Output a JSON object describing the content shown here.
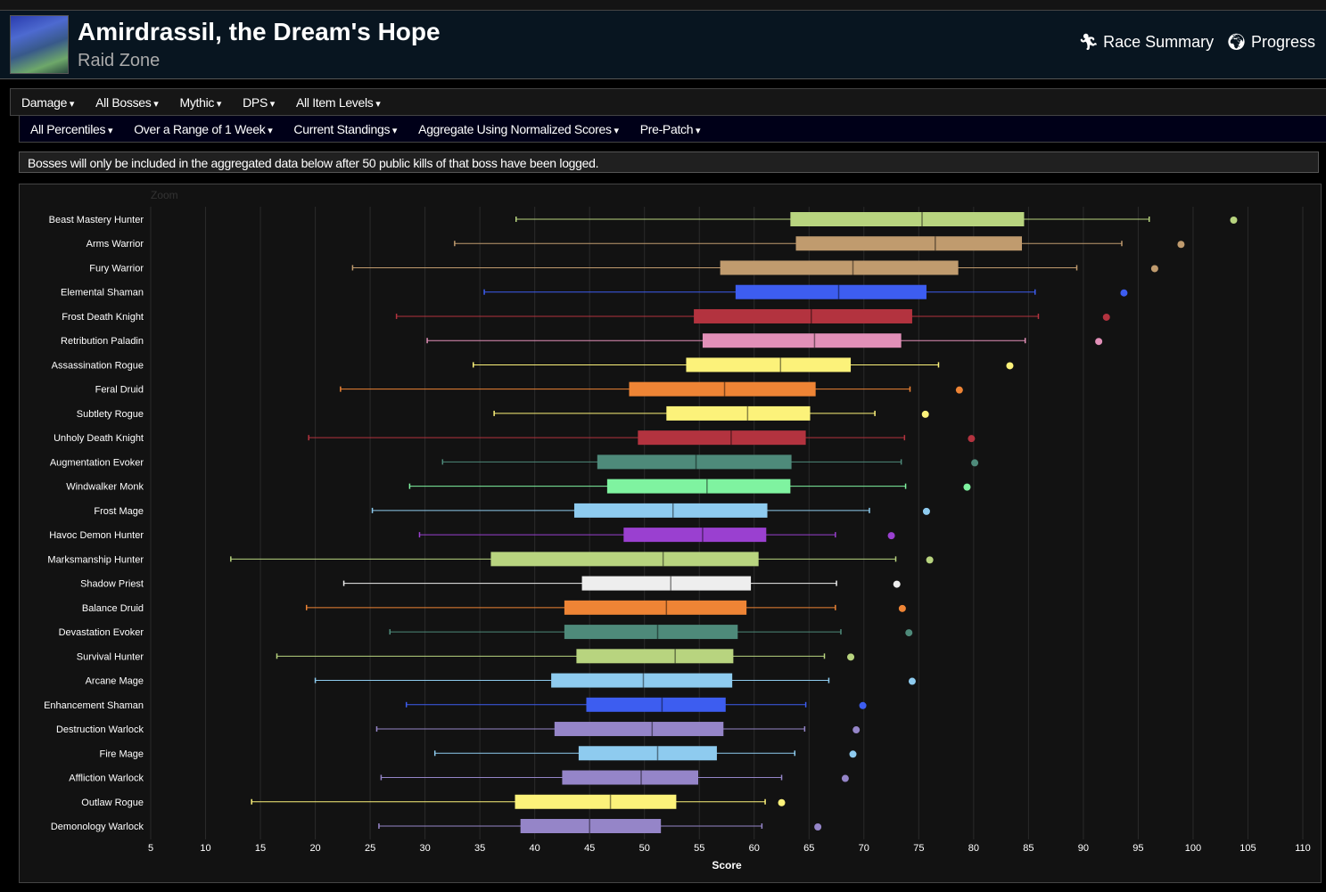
{
  "header": {
    "title": "Amirdrassil, the Dream's Hope",
    "subtitle": "Raid Zone",
    "race_summary": "Race Summary",
    "progress": "Progress"
  },
  "nav_primary": [
    "Damage",
    "All Bosses",
    "Mythic",
    "DPS",
    "All Item Levels"
  ],
  "nav_secondary": [
    "All Percentiles",
    "Over a Range of 1 Week",
    "Current Standings",
    "Aggregate Using Normalized Scores",
    "Pre-Patch"
  ],
  "notice": "Bosses will only be included in the aggregated data below after 50 public kills of that boss have been logged.",
  "chart_data": {
    "type": "boxplot",
    "orientation": "horizontal",
    "xlabel": "Score",
    "zoom_label": "Zoom",
    "xlim": [
      5,
      110
    ],
    "xticks": [
      5,
      10,
      15,
      20,
      25,
      30,
      35,
      40,
      45,
      50,
      55,
      60,
      65,
      70,
      75,
      80,
      85,
      90,
      95,
      100,
      105,
      110
    ],
    "grid": true,
    "series": [
      {
        "name": "Beast Mastery Hunter",
        "color": "#b8d47f",
        "low": 38.3,
        "q1": 63.3,
        "median": 75.3,
        "q3": 84.6,
        "high": 96.0,
        "outlier": 103.7
      },
      {
        "name": "Arms Warrior",
        "color": "#c09b6e",
        "low": 32.7,
        "q1": 63.8,
        "median": 76.5,
        "q3": 84.4,
        "high": 93.5,
        "outlier": 98.9
      },
      {
        "name": "Fury Warrior",
        "color": "#c09b6e",
        "low": 23.4,
        "q1": 56.9,
        "median": 69.0,
        "q3": 78.6,
        "high": 89.4,
        "outlier": 96.5
      },
      {
        "name": "Elemental Shaman",
        "color": "#3d5df0",
        "low": 35.4,
        "q1": 58.3,
        "median": 67.7,
        "q3": 75.7,
        "high": 85.6,
        "outlier": 93.7
      },
      {
        "name": "Frost Death Knight",
        "color": "#b3333f",
        "low": 27.4,
        "q1": 54.5,
        "median": 65.2,
        "q3": 74.4,
        "high": 85.9,
        "outlier": 92.1
      },
      {
        "name": "Retribution Paladin",
        "color": "#e290b8",
        "low": 30.2,
        "q1": 55.3,
        "median": 65.5,
        "q3": 73.4,
        "high": 84.7,
        "outlier": 91.4
      },
      {
        "name": "Assassination Rogue",
        "color": "#fcf27a",
        "low": 34.4,
        "q1": 53.8,
        "median": 62.4,
        "q3": 68.8,
        "high": 76.8,
        "outlier": 83.3
      },
      {
        "name": "Feral Druid",
        "color": "#ee8435",
        "low": 22.3,
        "q1": 48.6,
        "median": 57.3,
        "q3": 65.6,
        "high": 74.2,
        "outlier": 78.7
      },
      {
        "name": "Subtlety Rogue",
        "color": "#fcf27a",
        "low": 36.3,
        "q1": 52.0,
        "median": 59.4,
        "q3": 65.1,
        "high": 71.0,
        "outlier": 75.6
      },
      {
        "name": "Unholy Death Knight",
        "color": "#b3333f",
        "low": 19.4,
        "q1": 49.4,
        "median": 57.9,
        "q3": 64.7,
        "high": 73.7,
        "outlier": 79.8
      },
      {
        "name": "Augmentation Evoker",
        "color": "#4e8a7a",
        "low": 31.6,
        "q1": 45.7,
        "median": 54.7,
        "q3": 63.4,
        "high": 73.4,
        "outlier": 80.1
      },
      {
        "name": "Windwalker Monk",
        "color": "#7ff3a0",
        "low": 28.6,
        "q1": 46.6,
        "median": 55.7,
        "q3": 63.3,
        "high": 73.8,
        "outlier": 79.4
      },
      {
        "name": "Frost Mage",
        "color": "#8ecbef",
        "low": 25.2,
        "q1": 43.6,
        "median": 52.6,
        "q3": 61.2,
        "high": 70.5,
        "outlier": 75.7
      },
      {
        "name": "Havoc Demon Hunter",
        "color": "#9a40d0",
        "low": 29.5,
        "q1": 48.1,
        "median": 55.3,
        "q3": 61.1,
        "high": 67.4,
        "outlier": 72.5
      },
      {
        "name": "Marksmanship Hunter",
        "color": "#b8d47f",
        "low": 12.3,
        "q1": 36.0,
        "median": 51.7,
        "q3": 60.4,
        "high": 72.9,
        "outlier": 76.0
      },
      {
        "name": "Shadow Priest",
        "color": "#eeeeee",
        "low": 22.6,
        "q1": 44.3,
        "median": 52.4,
        "q3": 59.7,
        "high": 67.5,
        "outlier": 73.0
      },
      {
        "name": "Balance Druid",
        "color": "#ee8435",
        "low": 19.2,
        "q1": 42.7,
        "median": 52.0,
        "q3": 59.3,
        "high": 67.4,
        "outlier": 73.5
      },
      {
        "name": "Devastation Evoker",
        "color": "#4e8a7a",
        "low": 26.8,
        "q1": 42.7,
        "median": 51.2,
        "q3": 58.5,
        "high": 67.9,
        "outlier": 74.1
      },
      {
        "name": "Survival Hunter",
        "color": "#b8d47f",
        "low": 16.5,
        "q1": 43.8,
        "median": 52.8,
        "q3": 58.1,
        "high": 66.4,
        "outlier": 68.8
      },
      {
        "name": "Arcane Mage",
        "color": "#8ecbef",
        "low": 20.0,
        "q1": 41.5,
        "median": 49.9,
        "q3": 58.0,
        "high": 66.8,
        "outlier": 74.4
      },
      {
        "name": "Enhancement Shaman",
        "color": "#3d5df0",
        "low": 28.3,
        "q1": 44.7,
        "median": 51.6,
        "q3": 57.4,
        "high": 64.7,
        "outlier": 69.9
      },
      {
        "name": "Destruction Warlock",
        "color": "#9585c8",
        "low": 25.6,
        "q1": 41.8,
        "median": 50.7,
        "q3": 57.2,
        "high": 64.6,
        "outlier": 69.3
      },
      {
        "name": "Fire Mage",
        "color": "#8ecbef",
        "low": 30.9,
        "q1": 44.0,
        "median": 51.2,
        "q3": 56.6,
        "high": 63.7,
        "outlier": 69.0
      },
      {
        "name": "Affliction Warlock",
        "color": "#9585c8",
        "low": 26.0,
        "q1": 42.5,
        "median": 49.7,
        "q3": 54.9,
        "high": 62.5,
        "outlier": 68.3
      },
      {
        "name": "Outlaw Rogue",
        "color": "#fcf27a",
        "low": 14.2,
        "q1": 38.2,
        "median": 46.9,
        "q3": 52.9,
        "high": 61.0,
        "outlier": 62.5
      },
      {
        "name": "Demonology Warlock",
        "color": "#9585c8",
        "low": 25.8,
        "q1": 38.7,
        "median": 45.0,
        "q3": 51.5,
        "high": 60.7,
        "outlier": 65.8
      }
    ]
  }
}
